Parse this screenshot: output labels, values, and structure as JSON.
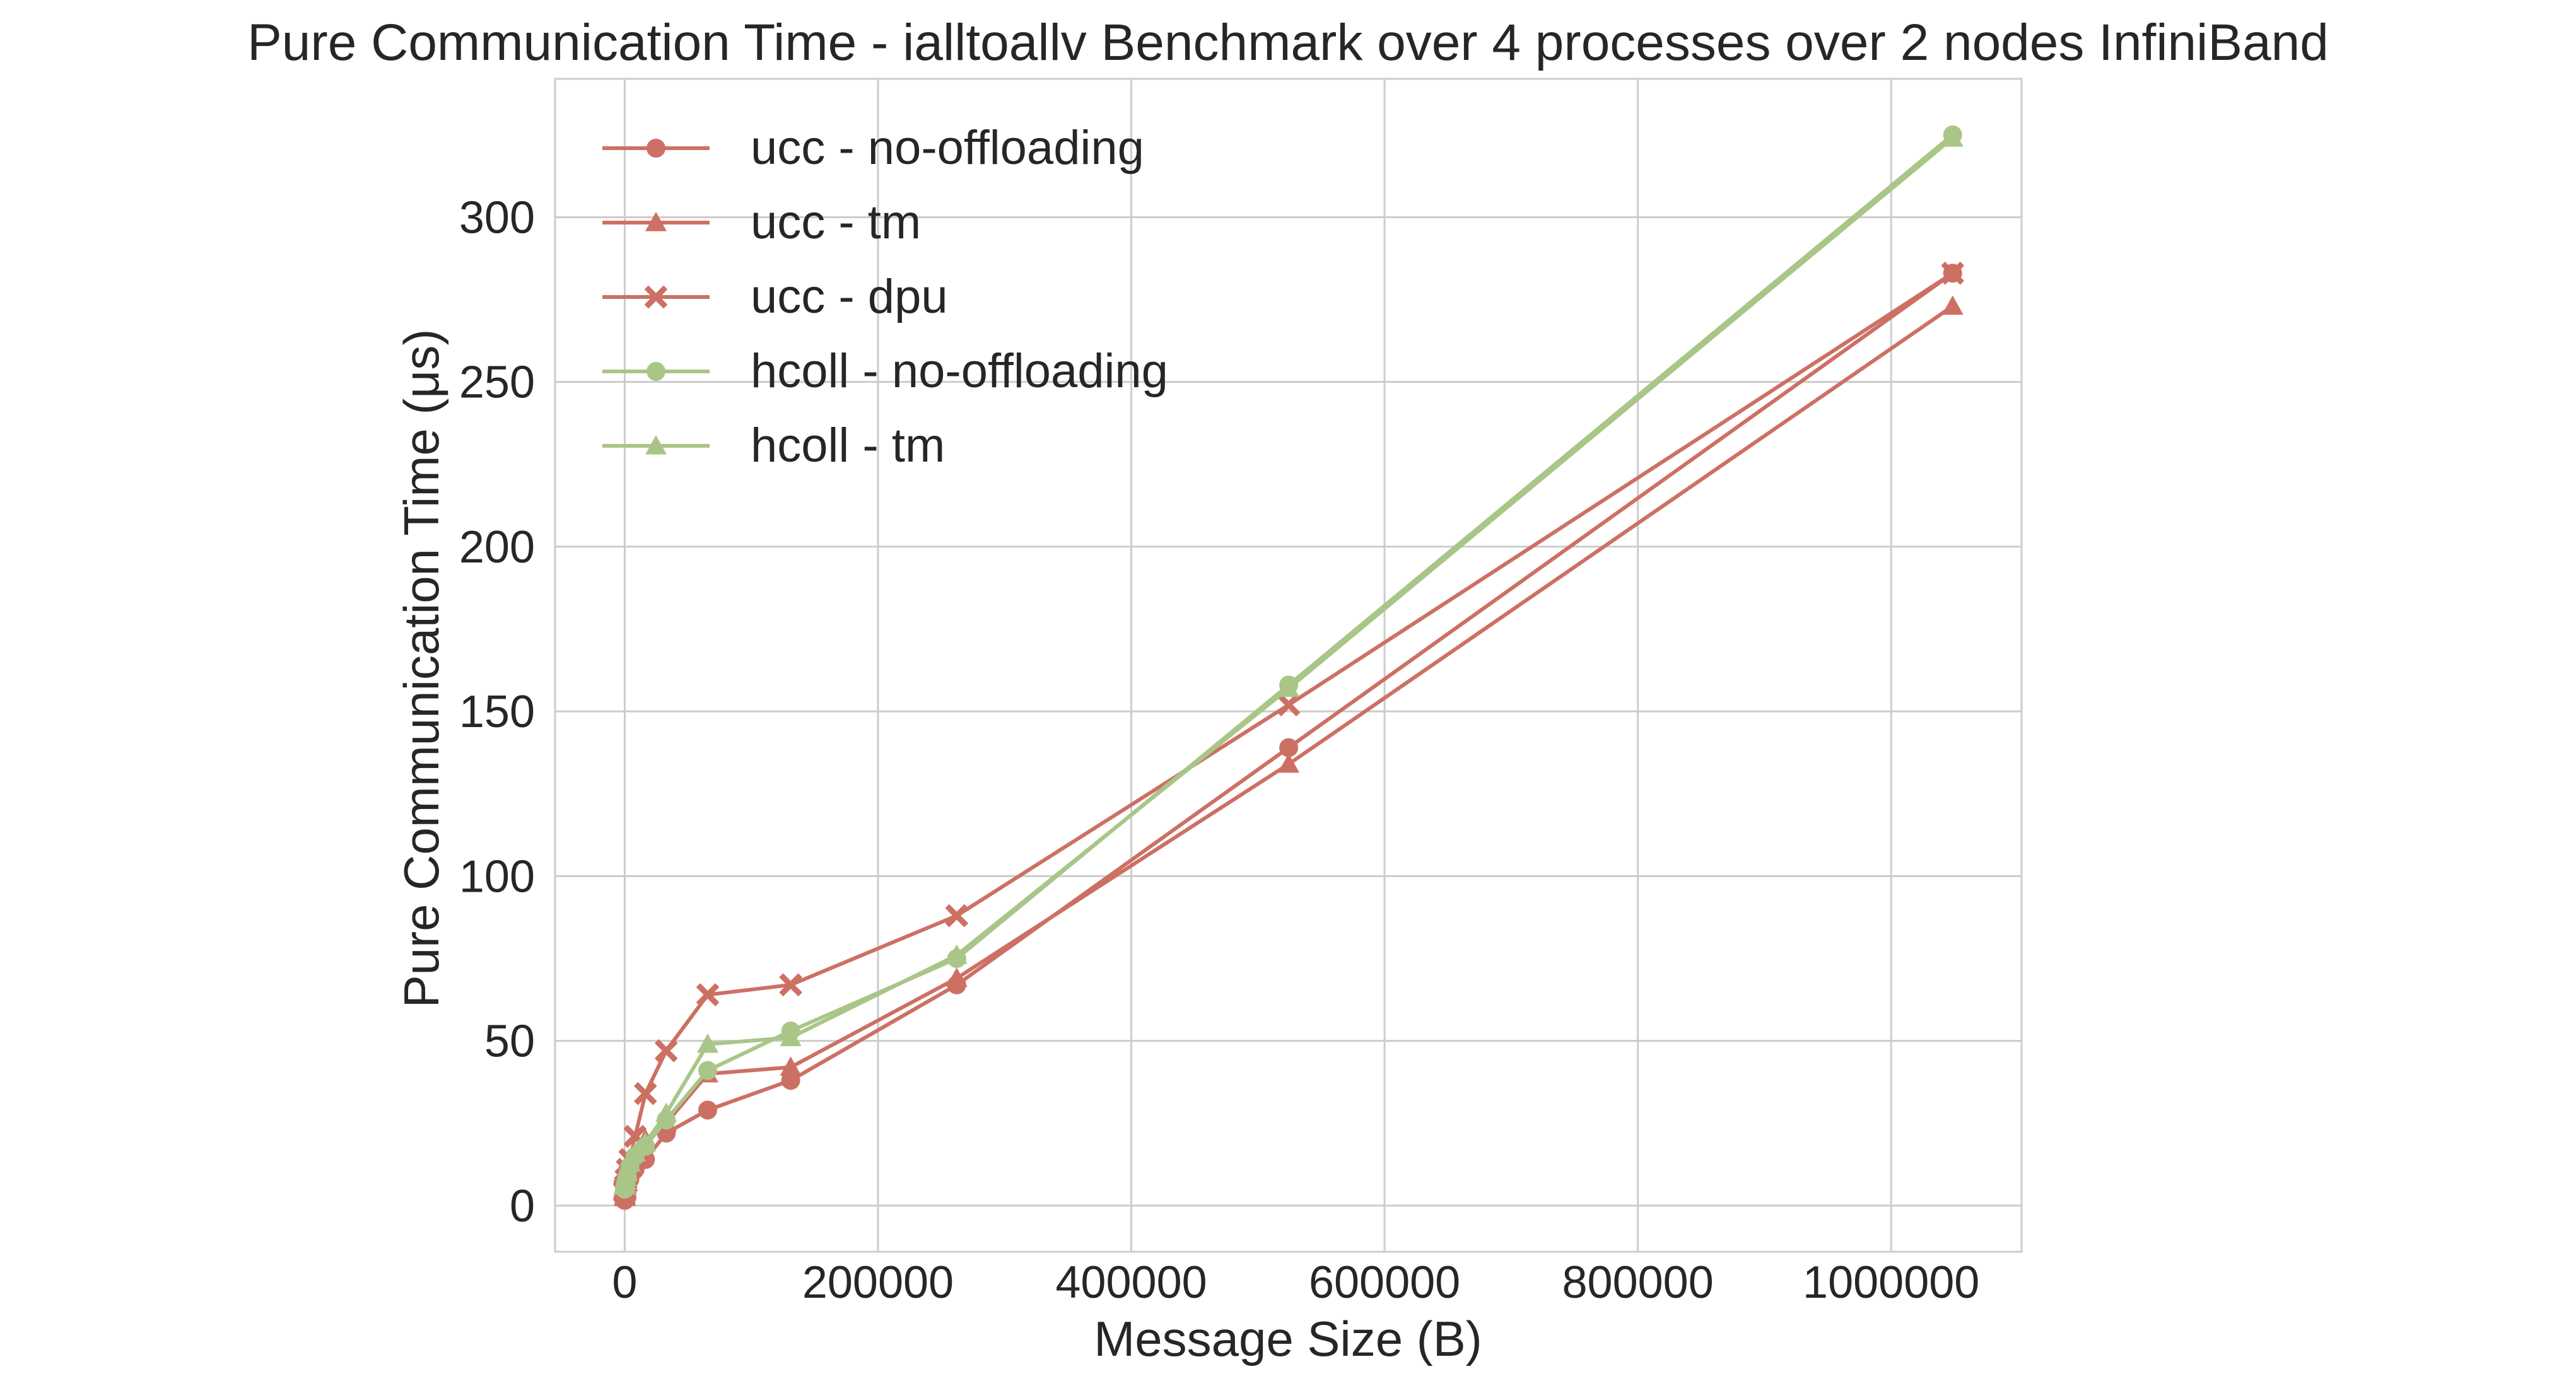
{
  "chart_data": {
    "type": "line",
    "title": "Pure Communication Time - ialltoallv Benchmark over 4 processes over 2 nodes InfiniBand",
    "xlabel": "Message Size (B)",
    "ylabel": "Pure Communication Time (μs)",
    "xlim": [
      -55000,
      1103000
    ],
    "ylim": [
      -14,
      342
    ],
    "xticks": [
      0,
      200000,
      400000,
      600000,
      800000,
      1000000
    ],
    "xtick_labels": [
      "0",
      "200000",
      "400000",
      "600000",
      "800000",
      "1000000"
    ],
    "yticks": [
      0,
      50,
      100,
      150,
      200,
      250,
      300
    ],
    "ytick_labels": [
      "0",
      "50",
      "100",
      "150",
      "200",
      "250",
      "300"
    ],
    "grid": true,
    "legend_position": "top-left",
    "x": [
      8,
      16,
      32,
      64,
      128,
      256,
      512,
      1024,
      2048,
      4096,
      8192,
      16384,
      32768,
      65536,
      131072,
      262144,
      524288,
      1048576
    ],
    "series": [
      {
        "name": "ucc - no-offloading",
        "color": "#cd7064",
        "marker": "circle",
        "values": [
          1.6,
          1.6,
          1.7,
          1.8,
          1.9,
          2.1,
          2.5,
          3.2,
          5,
          8,
          11,
          14,
          22,
          29,
          38,
          67,
          139,
          283
        ]
      },
      {
        "name": "ucc - tm",
        "color": "#cd7064",
        "marker": "triangle",
        "values": [
          2.5,
          2.6,
          2.7,
          2.8,
          3,
          3.3,
          4,
          5,
          7,
          11,
          16,
          20,
          25,
          40,
          42,
          69,
          134,
          273
        ]
      },
      {
        "name": "ucc - dpu",
        "color": "#cd7064",
        "marker": "x",
        "values": [
          4,
          4.1,
          4.2,
          4.4,
          4.7,
          5.2,
          6,
          8,
          11,
          14,
          21,
          34,
          47,
          64,
          67,
          88,
          152,
          283
        ]
      },
      {
        "name": "hcoll - no-offloading",
        "color": "#a9c688",
        "marker": "circle",
        "values": [
          5,
          5.1,
          5.2,
          5.3,
          5.5,
          5.8,
          6.4,
          7.5,
          9,
          12,
          15,
          18,
          26,
          41,
          53,
          75,
          158,
          325
        ]
      },
      {
        "name": "hcoll - tm",
        "color": "#a9c688",
        "marker": "triangle",
        "values": [
          6,
          6.1,
          6.2,
          6.3,
          6.6,
          7,
          7.5,
          8.5,
          10,
          13,
          16,
          19,
          28,
          49,
          51,
          76,
          157,
          324
        ]
      }
    ]
  }
}
